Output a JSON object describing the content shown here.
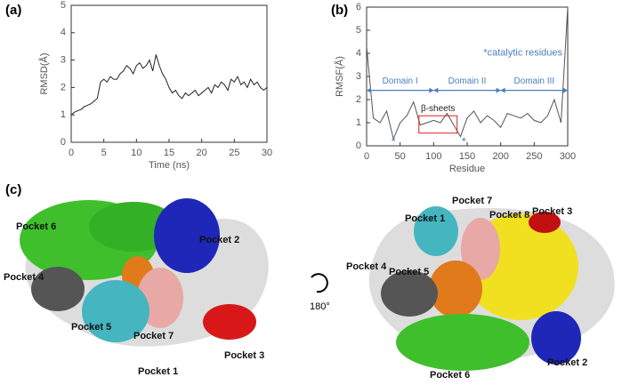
{
  "chart_data": [
    {
      "type": "line",
      "label": "(a)",
      "x_label": "Time (ns)",
      "y_label": "RMSD(Å)",
      "xlim": [
        0,
        30
      ],
      "ylim": [
        0,
        5
      ],
      "xticks": [
        0,
        5,
        10,
        15,
        20,
        25,
        30
      ],
      "yticks": [
        0,
        1,
        2,
        3,
        4,
        5
      ],
      "x": [
        0,
        0.5,
        1,
        1.5,
        2,
        2.5,
        3,
        3.5,
        4,
        4.5,
        5,
        5.5,
        6,
        6.5,
        7,
        7.5,
        8,
        8.5,
        9,
        9.5,
        10,
        10.5,
        11,
        11.5,
        12,
        12.5,
        13,
        13.5,
        14,
        14.5,
        15,
        15.5,
        16,
        16.5,
        17,
        17.5,
        18,
        18.5,
        19,
        19.5,
        20,
        20.5,
        21,
        21.5,
        22,
        22.5,
        23,
        23.5,
        24,
        24.5,
        25,
        25.5,
        26,
        26.5,
        27,
        27.5,
        28,
        28.5,
        29,
        29.5,
        30
      ],
      "series": [
        {
          "color": "#222222",
          "values": [
            1.0,
            1.1,
            1.15,
            1.2,
            1.3,
            1.35,
            1.4,
            1.5,
            1.6,
            2.2,
            2.3,
            2.2,
            2.4,
            2.3,
            2.3,
            2.5,
            2.6,
            2.8,
            2.7,
            2.5,
            2.8,
            2.9,
            2.7,
            2.8,
            3.0,
            2.6,
            3.2,
            2.8,
            2.5,
            2.3,
            2.0,
            1.8,
            1.9,
            1.7,
            1.6,
            1.8,
            1.7,
            1.8,
            1.9,
            1.7,
            1.8,
            1.9,
            2.0,
            1.8,
            2.1,
            2.0,
            2.2,
            2.1,
            1.9,
            2.3,
            2.2,
            2.4,
            2.1,
            2.2,
            2.0,
            2.3,
            2.1,
            2.2,
            2.0,
            1.9,
            2.0
          ]
        }
      ]
    },
    {
      "type": "line",
      "label": "(b)",
      "x_label": "Residue",
      "y_label": "RMSF(Å)",
      "xlim": [
        0,
        300
      ],
      "ylim": [
        0,
        6
      ],
      "xticks": [
        0,
        50,
        100,
        150,
        200,
        250,
        300
      ],
      "yticks": [
        0,
        1,
        2,
        3,
        4,
        5,
        6
      ],
      "x": [
        0,
        10,
        20,
        30,
        40,
        50,
        60,
        70,
        80,
        90,
        100,
        110,
        120,
        130,
        140,
        150,
        160,
        170,
        180,
        190,
        200,
        210,
        220,
        230,
        240,
        250,
        260,
        270,
        280,
        290,
        300
      ],
      "series": [
        {
          "color": "#555555",
          "values": [
            4.3,
            1.2,
            1.0,
            1.5,
            0.3,
            1.0,
            1.3,
            1.9,
            0.9,
            1.0,
            1.1,
            1.0,
            1.4,
            0.9,
            0.4,
            1.2,
            1.5,
            1.0,
            1.3,
            1.1,
            0.8,
            1.4,
            1.3,
            1.2,
            1.4,
            1.1,
            1.0,
            1.3,
            2.0,
            1.0,
            6.0
          ]
        }
      ],
      "note": "*catalytic residues",
      "domain_y": 2.4,
      "domain_color": "#4a7fc1",
      "domains": [
        {
          "text": "Domain I",
          "range": [
            0,
            100
          ]
        },
        {
          "text": "Domain II",
          "range": [
            100,
            200
          ]
        },
        {
          "text": "Domain III",
          "range": [
            200,
            300
          ]
        }
      ],
      "box": {
        "text": "β-sheets",
        "range": [
          78,
          135
        ],
        "yrange": [
          0.55,
          1.3
        ]
      },
      "stars": [
        {
          "text": "*",
          "x": 40
        },
        {
          "text": "*",
          "x": 145
        }
      ]
    }
  ],
  "panel_c": {
    "label": "(c)",
    "rotation": "180°",
    "left": [
      "Pocket 6",
      "Pocket 2",
      "Pocket 4",
      "Pocket 5",
      "Pocket 7",
      "Pocket 3",
      "Pocket 1"
    ],
    "right": [
      "Pocket 7",
      "Pocket 3",
      "Pocket 8",
      "Pocket 1",
      "Pocket 4",
      "Pocket 5",
      "Pocket 2",
      "Pocket 6"
    ]
  }
}
